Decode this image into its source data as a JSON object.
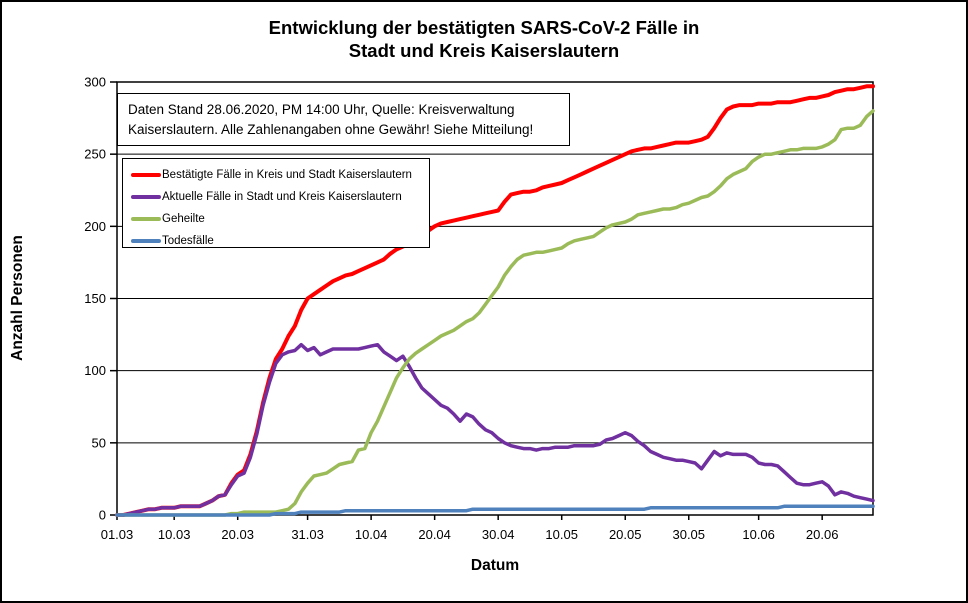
{
  "title": {
    "line1": "Entwicklung der bestätigten SARS-CoV-2 Fälle in",
    "line2": "Stadt und Kreis Kaiserslautern"
  },
  "annotation": {
    "text": "Daten Stand 28.06.2020, PM 14:00 Uhr, Quelle: Kreisverwaltung Kaiserslautern. Alle Zahlenangaben ohne Gewähr! Siehe Mitteilung!"
  },
  "axes": {
    "y_label": "Anzahl Personen",
    "x_label": "Datum",
    "y_ticks": [
      0,
      50,
      100,
      150,
      200,
      250,
      300
    ],
    "x_ticks": [
      {
        "day": 0,
        "label": "01.03"
      },
      {
        "day": 9,
        "label": "10.03"
      },
      {
        "day": 19,
        "label": "20.03"
      },
      {
        "day": 30,
        "label": "31.03"
      },
      {
        "day": 40,
        "label": "10.04"
      },
      {
        "day": 50,
        "label": "20.04"
      },
      {
        "day": 60,
        "label": "30.04"
      },
      {
        "day": 70,
        "label": "10.05"
      },
      {
        "day": 80,
        "label": "20.05"
      },
      {
        "day": 90,
        "label": "30.05"
      },
      {
        "day": 101,
        "label": "10.06"
      },
      {
        "day": 111,
        "label": "20.06"
      }
    ]
  },
  "legend": {
    "items": [
      {
        "label": "Bestätigte Fälle in Kreis und Stadt Kaiserslautern",
        "color": "#FF0000"
      },
      {
        "label": "Aktuelle Fälle in Stadt und Kreis Kaiserslautern",
        "color": "#7030A0"
      },
      {
        "label": "Geheilte",
        "color": "#9BBB59"
      },
      {
        "label": "Todesfälle",
        "color": "#4F81BD"
      }
    ]
  },
  "chart_data": {
    "type": "line",
    "title": "Entwicklung der bestätigten SARS-CoV-2 Fälle in Stadt und Kreis Kaiserslautern",
    "xlabel": "Datum",
    "ylabel": "Anzahl Personen",
    "ylim": [
      0,
      300
    ],
    "grid": true,
    "legend_position": "upper-left-inside",
    "x_dates": [
      "01.03",
      "02.03",
      "03.03",
      "04.03",
      "05.03",
      "06.03",
      "07.03",
      "08.03",
      "09.03",
      "10.03",
      "11.03",
      "12.03",
      "13.03",
      "14.03",
      "15.03",
      "16.03",
      "17.03",
      "18.03",
      "19.03",
      "20.03",
      "21.03",
      "22.03",
      "23.03",
      "24.03",
      "25.03",
      "26.03",
      "27.03",
      "28.03",
      "29.03",
      "30.03",
      "31.03",
      "01.04",
      "02.04",
      "03.04",
      "04.04",
      "05.04",
      "06.04",
      "07.04",
      "08.04",
      "09.04",
      "10.04",
      "11.04",
      "12.04",
      "13.04",
      "14.04",
      "15.04",
      "16.04",
      "17.04",
      "18.04",
      "19.04",
      "20.04",
      "21.04",
      "22.04",
      "23.04",
      "24.04",
      "25.04",
      "26.04",
      "27.04",
      "28.04",
      "29.04",
      "30.04",
      "01.05",
      "02.05",
      "03.05",
      "04.05",
      "05.05",
      "06.05",
      "07.05",
      "08.05",
      "09.05",
      "10.05",
      "11.05",
      "12.05",
      "13.05",
      "14.05",
      "15.05",
      "16.05",
      "17.05",
      "18.05",
      "19.05",
      "20.05",
      "21.05",
      "22.05",
      "23.05",
      "24.05",
      "25.05",
      "26.05",
      "27.05",
      "28.05",
      "29.05",
      "30.05",
      "31.05",
      "01.06",
      "02.06",
      "03.06",
      "04.06",
      "05.06",
      "06.06",
      "07.06",
      "08.06",
      "09.06",
      "10.06",
      "11.06",
      "12.06",
      "13.06",
      "14.06",
      "15.06",
      "16.06",
      "17.06",
      "18.06",
      "19.06",
      "20.06",
      "21.06",
      "22.06",
      "23.06",
      "24.06",
      "25.06",
      "26.06",
      "27.06",
      "28.06"
    ],
    "series": [
      {
        "name": "Bestätigte Fälle in Kreis und Stadt Kaiserslautern",
        "color": "#FF0000",
        "values": [
          0,
          0,
          1,
          2,
          3,
          4,
          4,
          5,
          5,
          5,
          6,
          6,
          6,
          6,
          8,
          10,
          13,
          14,
          22,
          28,
          31,
          42,
          58,
          78,
          95,
          108,
          115,
          124,
          131,
          142,
          150,
          153,
          156,
          159,
          162,
          164,
          166,
          167,
          169,
          171,
          173,
          175,
          177,
          181,
          184,
          186,
          188,
          192,
          195,
          197,
          200,
          202,
          203,
          204,
          205,
          206,
          207,
          208,
          209,
          210,
          211,
          217,
          222,
          223,
          224,
          224,
          225,
          227,
          228,
          229,
          230,
          232,
          234,
          236,
          238,
          240,
          242,
          244,
          246,
          248,
          250,
          252,
          253,
          254,
          254,
          255,
          256,
          257,
          258,
          258,
          258,
          259,
          260,
          262,
          268,
          275,
          281,
          283,
          284,
          284,
          284,
          285,
          285,
          285,
          286,
          286,
          286,
          287,
          288,
          289,
          289,
          290,
          291,
          293,
          294,
          295,
          295,
          296,
          297,
          297
        ]
      },
      {
        "name": "Aktuelle Fälle in Stadt und Kreis Kaiserslautern",
        "color": "#7030A0",
        "values": [
          0,
          0,
          1,
          2,
          3,
          4,
          4,
          5,
          5,
          5,
          6,
          6,
          6,
          6,
          8,
          10,
          13,
          14,
          21,
          27,
          29,
          40,
          56,
          76,
          92,
          105,
          111,
          113,
          114,
          118,
          114,
          116,
          111,
          113,
          115,
          115,
          115,
          115,
          115,
          116,
          117,
          118,
          113,
          110,
          107,
          110,
          103,
          95,
          88,
          84,
          80,
          76,
          74,
          70,
          65,
          70,
          68,
          63,
          59,
          57,
          53,
          50,
          48,
          47,
          46,
          46,
          45,
          46,
          46,
          47,
          47,
          47,
          48,
          48,
          48,
          48,
          49,
          52,
          53,
          55,
          57,
          55,
          51,
          48,
          44,
          42,
          40,
          39,
          38,
          38,
          37,
          36,
          32,
          38,
          44,
          41,
          43,
          42,
          42,
          42,
          40,
          36,
          35,
          35,
          34,
          30,
          26,
          22,
          21,
          21,
          22,
          23,
          20,
          14,
          16,
          15,
          13,
          12,
          11,
          10
        ]
      },
      {
        "name": "Geheilte",
        "color": "#9BBB59",
        "values": [
          0,
          0,
          0,
          0,
          0,
          0,
          0,
          0,
          0,
          0,
          0,
          0,
          0,
          0,
          0,
          0,
          0,
          0,
          1,
          1,
          2,
          2,
          2,
          2,
          2,
          2,
          3,
          4,
          8,
          16,
          22,
          27,
          28,
          29,
          32,
          35,
          36,
          37,
          45,
          46,
          57,
          65,
          75,
          85,
          95,
          102,
          108,
          112,
          115,
          118,
          121,
          124,
          126,
          128,
          131,
          134,
          136,
          140,
          146,
          152,
          158,
          166,
          172,
          177,
          180,
          181,
          182,
          182,
          183,
          184,
          185,
          188,
          190,
          191,
          192,
          193,
          196,
          199,
          201,
          202,
          203,
          205,
          208,
          209,
          210,
          211,
          212,
          212,
          213,
          215,
          216,
          218,
          220,
          221,
          224,
          228,
          233,
          236,
          238,
          240,
          245,
          248,
          250,
          250,
          251,
          252,
          253,
          253,
          254,
          254,
          254,
          255,
          257,
          260,
          267,
          268,
          268,
          270,
          276,
          280
        ]
      },
      {
        "name": "Todesfälle",
        "color": "#4F81BD",
        "values": [
          0,
          0,
          0,
          0,
          0,
          0,
          0,
          0,
          0,
          0,
          0,
          0,
          0,
          0,
          0,
          0,
          0,
          0,
          0,
          0,
          0,
          0,
          0,
          0,
          0,
          1,
          1,
          1,
          1,
          2,
          2,
          2,
          2,
          2,
          2,
          2,
          3,
          3,
          3,
          3,
          3,
          3,
          3,
          3,
          3,
          3,
          3,
          3,
          3,
          3,
          3,
          3,
          3,
          3,
          3,
          3,
          4,
          4,
          4,
          4,
          4,
          4,
          4,
          4,
          4,
          4,
          4,
          4,
          4,
          4,
          4,
          4,
          4,
          4,
          4,
          4,
          4,
          4,
          4,
          4,
          4,
          4,
          4,
          4,
          5,
          5,
          5,
          5,
          5,
          5,
          5,
          5,
          5,
          5,
          5,
          5,
          5,
          5,
          5,
          5,
          5,
          5,
          5,
          5,
          5,
          6,
          6,
          6,
          6,
          6,
          6,
          6,
          6,
          6,
          6,
          6,
          6,
          6,
          6,
          6
        ]
      }
    ]
  }
}
